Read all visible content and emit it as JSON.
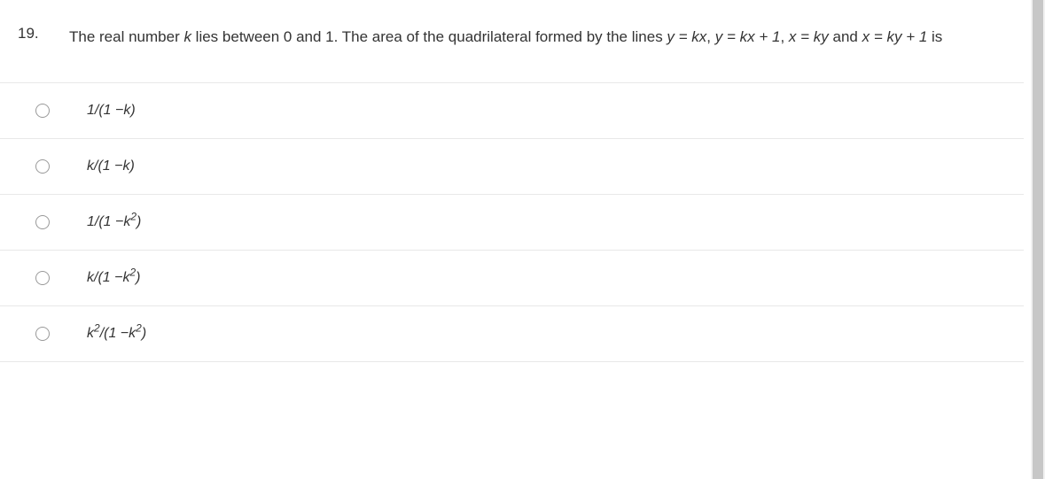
{
  "question": {
    "number": "19.",
    "text_part1": "The real number ",
    "text_k": "k",
    "text_part2": " lies between 0 and 1. The area of the quadrilateral formed by the lines ",
    "text_eq1": "y = kx",
    "text_comma1": ", ",
    "text_eq2": "y = kx + 1",
    "text_comma2": ", ",
    "text_eq3": "x = ky",
    "text_and": " and ",
    "text_eq4": "x = ky + 1",
    "text_end": " is"
  },
  "options": {
    "opt1": "1/(1 −k)",
    "opt2": "k/(1 −k)",
    "opt3": "1/(1 −k²)",
    "opt4": "k/(1 −k²)",
    "opt5": "k²/(1 −k²)"
  },
  "colors": {
    "text": "#333333",
    "border": "#e8e8e8",
    "radio_border": "#999999",
    "background": "#ffffff",
    "scroll_track": "#f1f1f1",
    "scroll_thumb": "#c7c7c7"
  }
}
